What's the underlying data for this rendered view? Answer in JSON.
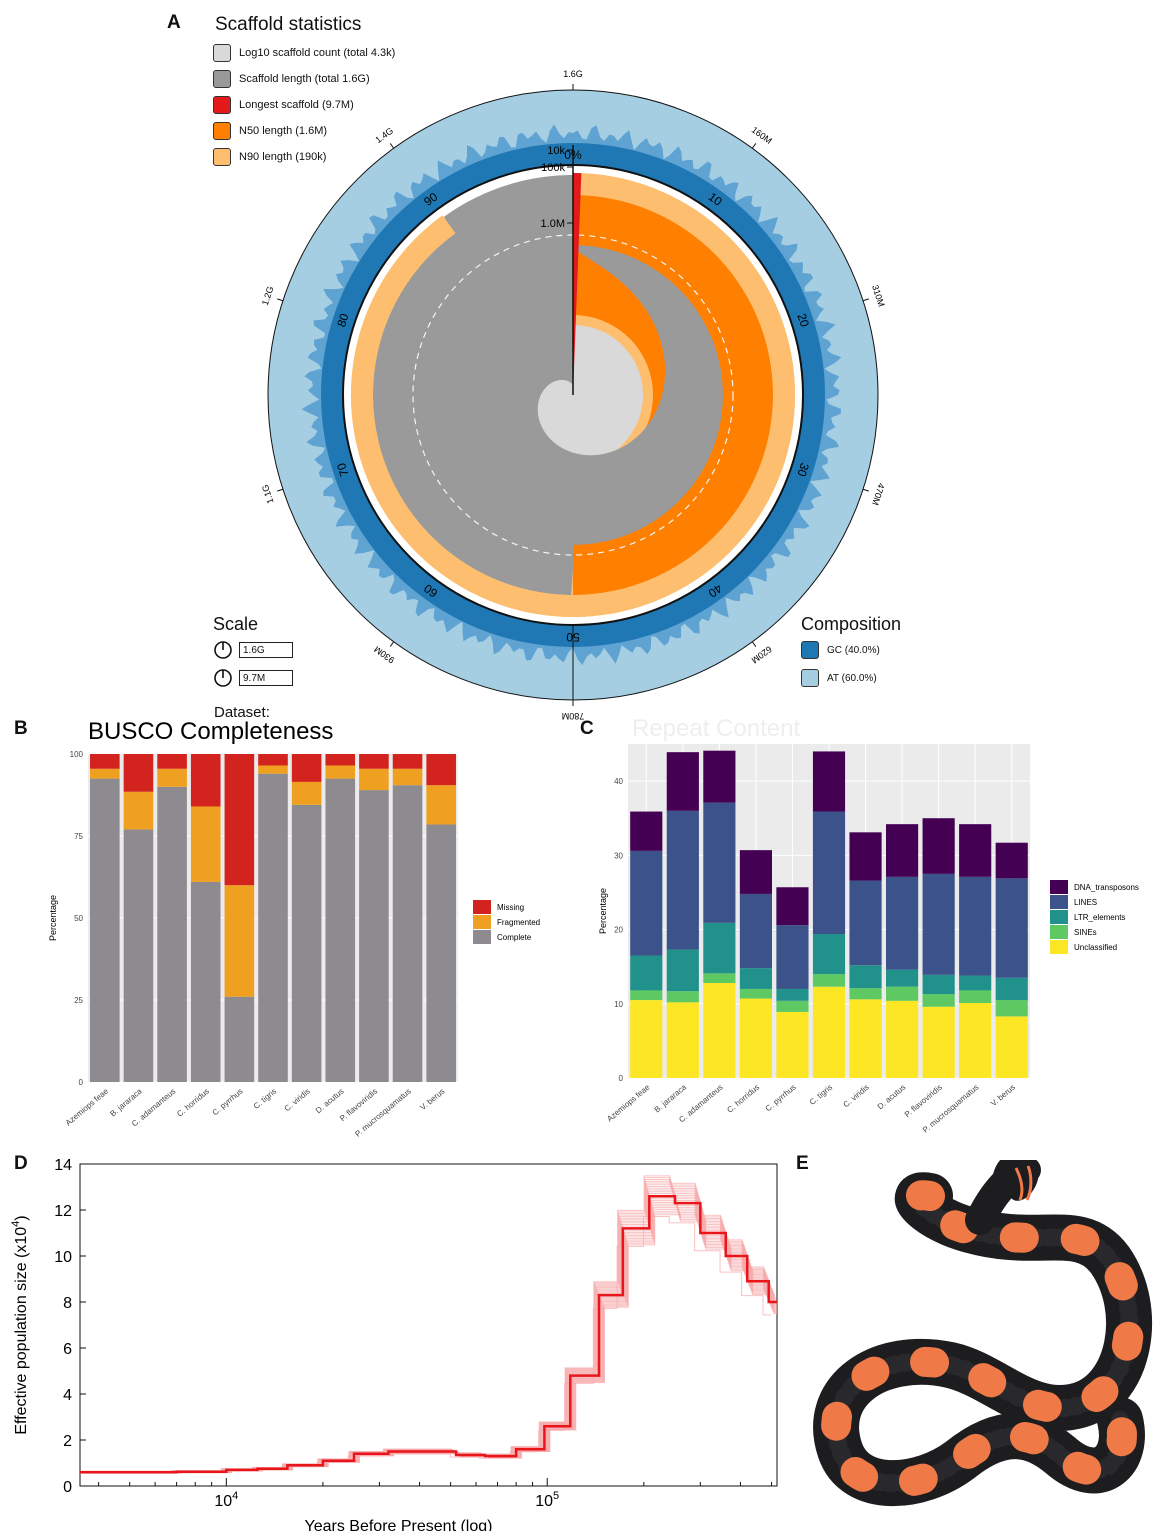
{
  "panels": {
    "a": "A",
    "b": "B",
    "c": "C",
    "d": "D",
    "e": "E"
  },
  "snail": {
    "title": "Scaffold statistics",
    "legend": [
      {
        "label": "Log10 scaffold count (total 4.3k)",
        "color": "#d9d9d9"
      },
      {
        "label": "Scaffold length (total 1.6G)",
        "color": "#999999"
      },
      {
        "label": "Longest scaffold (9.7M)",
        "color": "#e31a1c"
      },
      {
        "label": "N50 length (1.6M)",
        "color": "#ff7f00"
      },
      {
        "label": "N90 length (190k)",
        "color": "#fdbf6f"
      }
    ],
    "outer_ticks": [
      "1.6G",
      "160M",
      "310M",
      "470M",
      "620M",
      "780M",
      "930M",
      "1.1G",
      "1.2G",
      "1.4G"
    ],
    "percent_ticks": [
      "0%",
      "10",
      "20",
      "30",
      "40",
      "50",
      "60",
      "70",
      "80",
      "90"
    ],
    "radial_ticks": [
      "10k",
      "100k",
      "1.0M"
    ],
    "scale_title": "Scale",
    "scale_values": [
      "1.6G",
      "9.7M"
    ],
    "composition_title": "Composition",
    "composition": [
      {
        "label": "GC (40.0%)",
        "color": "#1f78b4"
      },
      {
        "label": "AT (60.0%)",
        "color": "#a6cee3"
      }
    ],
    "dataset_label": "Dataset:",
    "metrics": {
      "total_length": 1.6,
      "longest": 9.7,
      "n50": 1.6,
      "n90": 0.19,
      "gc_percent": 40.0
    }
  },
  "chart_data": [
    {
      "type": "bar",
      "title": "BUSCO Completeness",
      "ylabel": "Percentage",
      "ylim": [
        0,
        100
      ],
      "yticks": [
        "0",
        "25",
        "50",
        "75",
        "100"
      ],
      "categories": [
        "Azemiops feae",
        "B. jararaca",
        "C. adamanteus",
        "C. horridus",
        "C. pyrrhus",
        "C. tigris",
        "C. viridis",
        "D. acutus",
        "P. flavoviridis",
        "P. mucrosquamatus",
        "V. berus"
      ],
      "series": [
        {
          "name": "Complete",
          "color": "#8e8b90",
          "values": [
            92.5,
            77,
            90,
            61,
            26,
            94,
            84.5,
            92.5,
            89,
            90.5,
            78.5
          ]
        },
        {
          "name": "Fragmented",
          "color": "#f0a020",
          "values": [
            3,
            11.5,
            5.5,
            23,
            34,
            2.5,
            7,
            4,
            6.5,
            5,
            12
          ]
        },
        {
          "name": "Missing",
          "color": "#d3231e",
          "values": [
            4.5,
            11.5,
            4.5,
            16,
            40,
            3.5,
            8.5,
            3.5,
            4.5,
            4.5,
            9.5
          ]
        }
      ]
    },
    {
      "type": "bar",
      "title": "Repeat Content",
      "ylabel": "Percentage",
      "ylim": [
        0,
        45
      ],
      "yticks": [
        "0",
        "10",
        "20",
        "30",
        "40"
      ],
      "categories": [
        "Azemiops feae",
        "B. jararaca",
        "C. adamanteus",
        "C. horridus",
        "C. pyrrhus",
        "C. tigris",
        "C. viridis",
        "D. acutus",
        "P. flavoviridis",
        "P. mucrosquamatus",
        "V. berus"
      ],
      "series": [
        {
          "name": "Unclassified",
          "color": "#fde725",
          "values": [
            10.5,
            10.2,
            12.8,
            10.7,
            8.9,
            12.3,
            10.6,
            10.4,
            9.6,
            10.1,
            8.3
          ]
        },
        {
          "name": "SINEs",
          "color": "#5ec962",
          "values": [
            1.3,
            1.5,
            1.3,
            1.3,
            1.5,
            1.7,
            1.5,
            1.9,
            1.7,
            1.7,
            2.2
          ]
        },
        {
          "name": "LTR_elements",
          "color": "#21918c",
          "values": [
            4.7,
            5.6,
            6.8,
            2.8,
            1.6,
            5.4,
            3.1,
            2.3,
            2.6,
            2.0,
            3.0
          ]
        },
        {
          "name": "LINES",
          "color": "#3b528b",
          "values": [
            14.1,
            18.7,
            16.2,
            10.0,
            8.6,
            16.5,
            11.4,
            12.5,
            13.6,
            13.3,
            13.4
          ]
        },
        {
          "name": "DNA_transposons",
          "color": "#440154",
          "values": [
            5.3,
            7.9,
            7.0,
            5.9,
            5.1,
            8.1,
            6.5,
            7.1,
            7.5,
            7.1,
            4.8
          ]
        }
      ]
    },
    {
      "type": "line",
      "title": "",
      "xlabel": "Years Before Present (log)",
      "ylabel": "Effective population size (x10",
      "ylabel_sup": "4",
      "ylabel_end": ")",
      "xscale": "log",
      "xlim": [
        3500,
        520000
      ],
      "ylim": [
        0,
        14
      ],
      "xticks": [
        {
          "value": 10000,
          "base": "10",
          "exp": "4"
        },
        {
          "value": 100000,
          "base": "10",
          "exp": "5"
        }
      ],
      "yticks": [
        0,
        2,
        4,
        6,
        8,
        10,
        12,
        14
      ],
      "color": "#e8161a",
      "steps": [
        [
          3500,
          0.6
        ],
        [
          7000,
          0.62
        ],
        [
          10000,
          0.7
        ],
        [
          12500,
          0.75
        ],
        [
          15500,
          0.9
        ],
        [
          20000,
          1.1
        ],
        [
          25000,
          1.4
        ],
        [
          32000,
          1.5
        ],
        [
          42000,
          1.5
        ],
        [
          52000,
          1.35
        ],
        [
          64000,
          1.3
        ],
        [
          80000,
          1.6
        ],
        [
          98000,
          2.6
        ],
        [
          118000,
          4.8
        ],
        [
          145000,
          8.3
        ],
        [
          172000,
          11.2
        ],
        [
          208000,
          12.6
        ],
        [
          250000,
          12.3
        ],
        [
          300000,
          11.0
        ],
        [
          360000,
          10.0
        ],
        [
          420000,
          8.9
        ],
        [
          490000,
          8.0
        ],
        [
          520000,
          8.0
        ]
      ]
    }
  ]
}
